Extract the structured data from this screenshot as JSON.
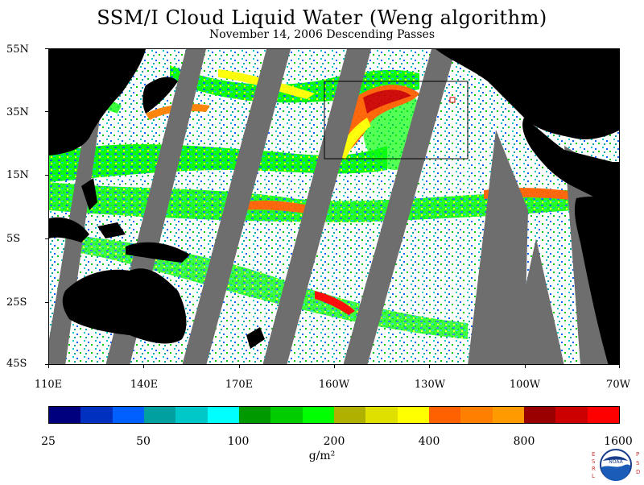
{
  "title": "SSM/I Cloud Liquid Water (Weng algorithm)",
  "subtitle": "November 14, 2006  Descending Passes",
  "lat_labels": [
    "55N",
    "35N",
    "15N",
    "5S",
    "25S",
    "45S"
  ],
  "lon_labels": [
    "110E",
    "140E",
    "170E",
    "160W",
    "130W",
    "100W",
    "70W"
  ],
  "colorbar": {
    "colors": [
      "#00007f",
      "#0030c0",
      "#0060ff",
      "#00a0a0",
      "#00c8c8",
      "#00ffff",
      "#009900",
      "#00cc00",
      "#00ff00",
      "#b0b000",
      "#e0e000",
      "#ffff00",
      "#ff6000",
      "#ff8000",
      "#ff9a00",
      "#990000",
      "#cc0000",
      "#ff0000"
    ],
    "labels": [
      "25",
      "50",
      "100",
      "200",
      "400",
      "800",
      "1600"
    ],
    "units": "g/m²"
  },
  "logo": {
    "left_text": "ESRL",
    "right_text": "PSD",
    "center_text": "NOAA"
  },
  "map": {
    "ocean_color": "#ffffff",
    "land_color": "#000000",
    "swath_gap_color": "#6e6e6e",
    "highlight_box_color": "#000000"
  }
}
